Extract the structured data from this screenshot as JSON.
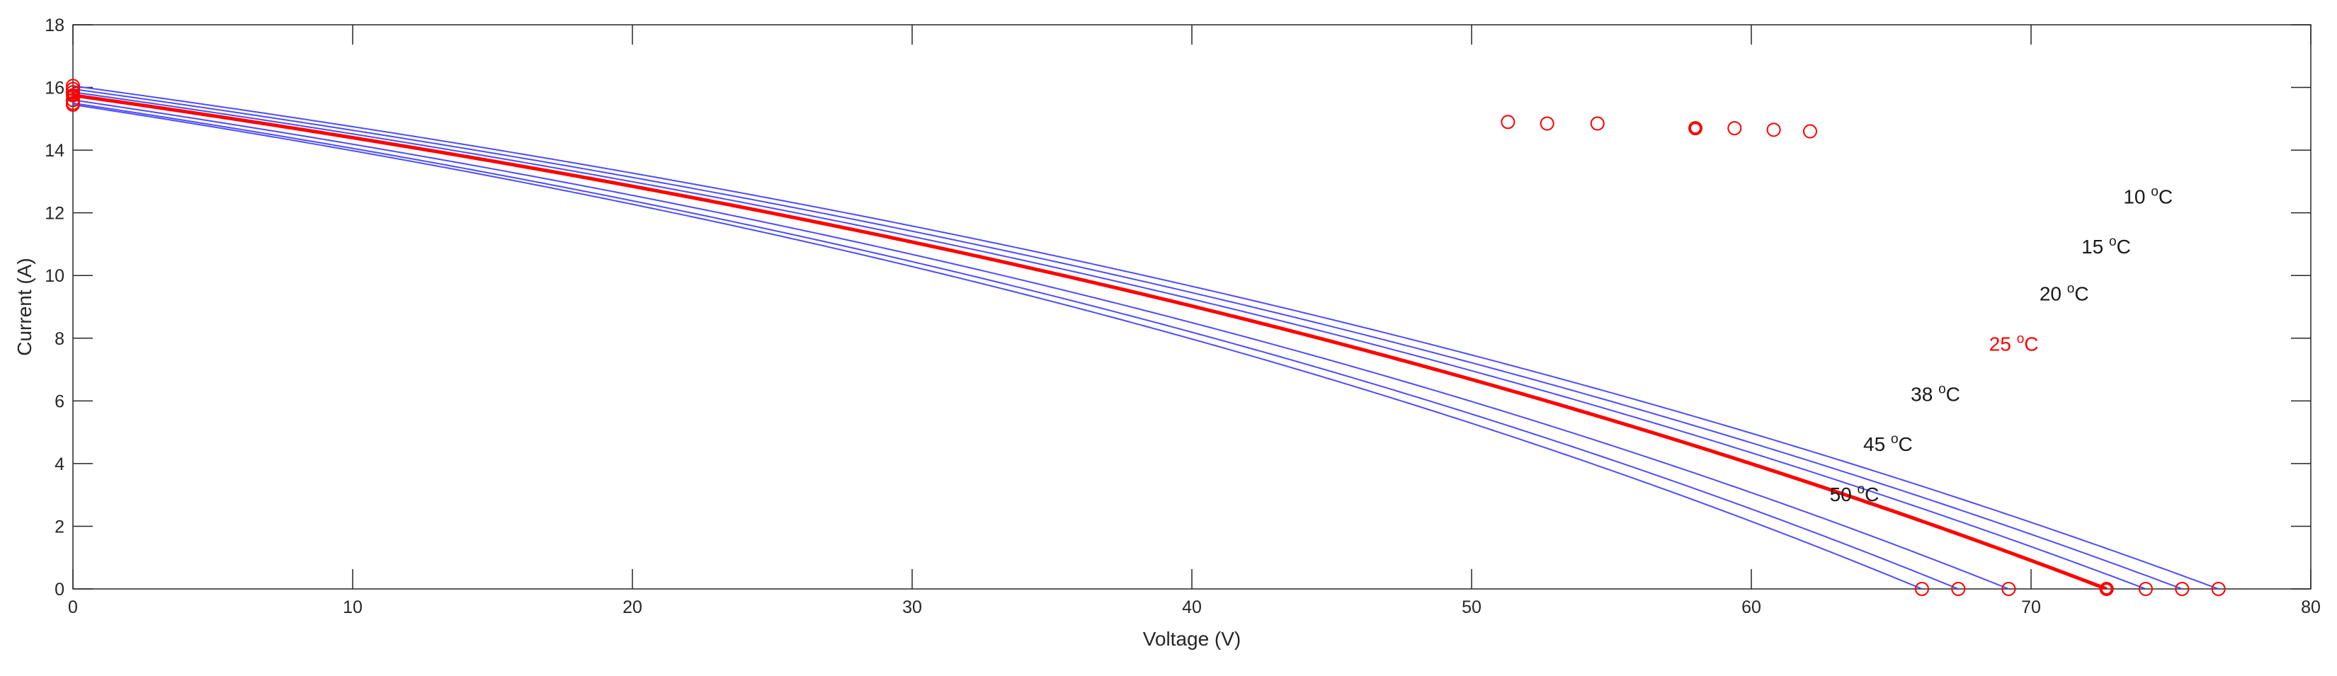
{
  "chart_data": {
    "type": "line",
    "title": "",
    "xlabel": "Voltage (V)",
    "ylabel": "Current (A)",
    "xlim": [
      0,
      80
    ],
    "ylim": [
      0,
      18
    ],
    "xticks": [
      "0",
      "10",
      "20",
      "30",
      "40",
      "50",
      "60",
      "70",
      "80"
    ],
    "yticks": [
      "0",
      "2",
      "4",
      "6",
      "8",
      "10",
      "12",
      "14",
      "16",
      "18"
    ],
    "grid": false,
    "legend": "none",
    "colors": {
      "reference": "#ff0000",
      "curves": "#4d4dff",
      "text": "#1a1a1a",
      "axis": "#262626"
    },
    "series": [
      {
        "name": "10",
        "highlight": false,
        "isc": 16.05,
        "voc": 76.7,
        "vmp": 62.1,
        "imp": 14.6,
        "label": {
          "num": "10",
          "sup": "o",
          "unit": "C",
          "at": [
            73.3,
            12.3
          ]
        }
      },
      {
        "name": "15",
        "highlight": false,
        "isc": 15.95,
        "voc": 75.4,
        "vmp": 60.8,
        "imp": 14.65,
        "label": {
          "num": "15",
          "sup": "o",
          "unit": "C",
          "at": [
            71.8,
            10.7
          ]
        }
      },
      {
        "name": "20",
        "highlight": false,
        "isc": 15.85,
        "voc": 74.1,
        "vmp": 59.4,
        "imp": 14.7,
        "label": {
          "num": "20",
          "sup": "o",
          "unit": "C",
          "at": [
            70.3,
            9.2
          ]
        }
      },
      {
        "name": "25",
        "highlight": true,
        "isc": 15.75,
        "voc": 72.7,
        "vmp": 58.0,
        "imp": 14.7,
        "label": {
          "num": "25",
          "sup": "o",
          "unit": "C",
          "at": [
            68.5,
            7.6
          ]
        }
      },
      {
        "name": "38",
        "highlight": false,
        "isc": 15.6,
        "voc": 69.2,
        "vmp": 54.5,
        "imp": 14.85,
        "label": {
          "num": "38",
          "sup": "o",
          "unit": "C",
          "at": [
            65.7,
            6.0
          ]
        }
      },
      {
        "name": "45",
        "highlight": false,
        "isc": 15.5,
        "voc": 67.4,
        "vmp": 52.7,
        "imp": 14.85,
        "label": {
          "num": "45",
          "sup": "o",
          "unit": "C",
          "at": [
            64.0,
            4.4
          ]
        }
      },
      {
        "name": "50",
        "highlight": false,
        "isc": 15.45,
        "voc": 66.1,
        "vmp": 51.3,
        "imp": 14.9,
        "label": {
          "num": "50",
          "sup": "o",
          "unit": "C",
          "at": [
            62.8,
            2.8
          ]
        }
      }
    ]
  }
}
